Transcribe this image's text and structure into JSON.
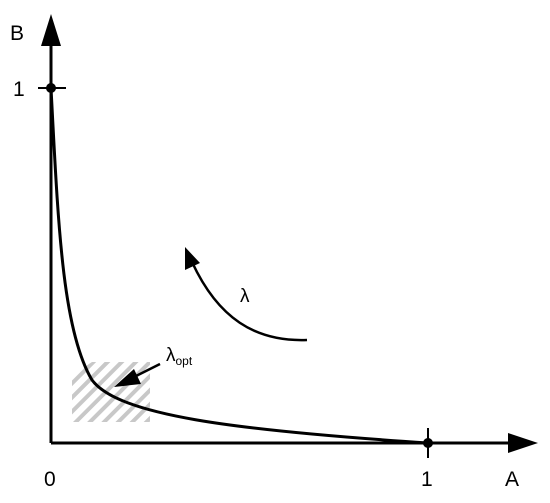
{
  "axes": {
    "x_label": "A",
    "y_label": "B",
    "x_ticks": [
      "0",
      "1"
    ],
    "y_ticks": [
      "1"
    ]
  },
  "annotations": {
    "lambda": "λ",
    "lambda_opt_symbol": "λ",
    "lambda_opt_subscript": "opt"
  },
  "colors": {
    "ink": "#000000",
    "hatch": "#9a9a9a"
  }
}
